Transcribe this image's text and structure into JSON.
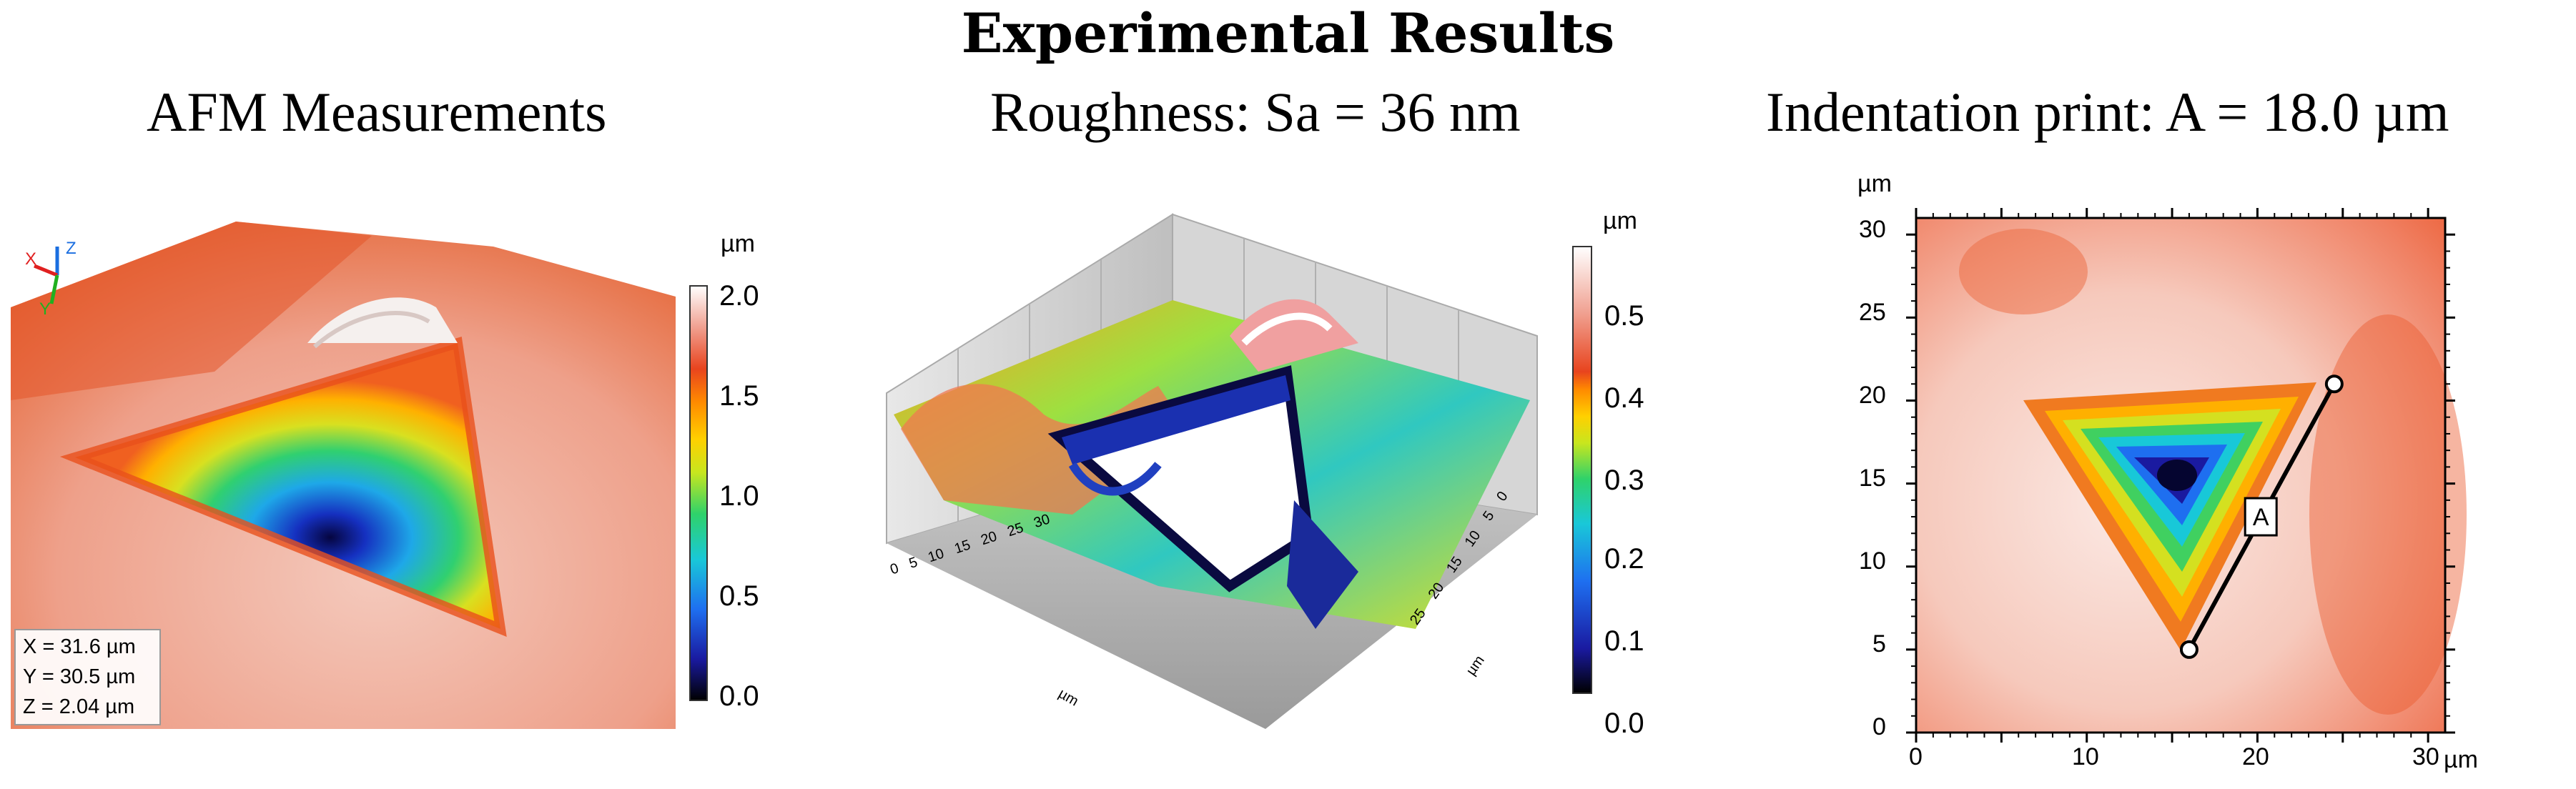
{
  "header": {
    "title": "Experimental Results"
  },
  "panels": {
    "afm": {
      "title": "AFM Measurements",
      "unit": "µm",
      "colorbar_ticks": [
        "2.0",
        "1.5",
        "1.0",
        "0.5",
        "0.0"
      ],
      "axis_icon_labels": {
        "x": "X",
        "y": "Y",
        "z": "Z"
      },
      "info": [
        "X = 31.6 µm",
        "Y = 30.5 µm",
        "Z = 2.04 µm"
      ]
    },
    "roughness": {
      "title": "Roughness: Sa = 36 nm",
      "unit": "µm",
      "colorbar_ticks": [
        "0.5",
        "0.4",
        "0.3",
        "0.2",
        "0.1",
        "0.0"
      ],
      "left_axis_ticks": [
        "0",
        "5",
        "10",
        "15",
        "20",
        "25",
        "30"
      ],
      "left_axis_unit": "µm",
      "right_axis_ticks": [
        "0",
        "5",
        "10",
        "15",
        "20",
        "25"
      ],
      "right_axis_unit": "µm"
    },
    "indentation": {
      "title": "Indentation print: A = 18.0 µm",
      "y_unit": "µm",
      "x_unit": "µm",
      "y_ticks": [
        "30",
        "25",
        "20",
        "15",
        "10",
        "5",
        "0"
      ],
      "x_ticks": [
        "0",
        "10",
        "20",
        "30"
      ],
      "line_label": "A"
    }
  },
  "colors": {
    "surface_orange": "#e8552a",
    "surface_pink": "#f2c0b0",
    "colormap": [
      "#000000",
      "#1a1aa0",
      "#1e6ff0",
      "#19c8d8",
      "#2fd26a",
      "#c8e61e",
      "#ffd000",
      "#ff8a00",
      "#e8441e",
      "#f0a090",
      "#ffffff"
    ]
  }
}
